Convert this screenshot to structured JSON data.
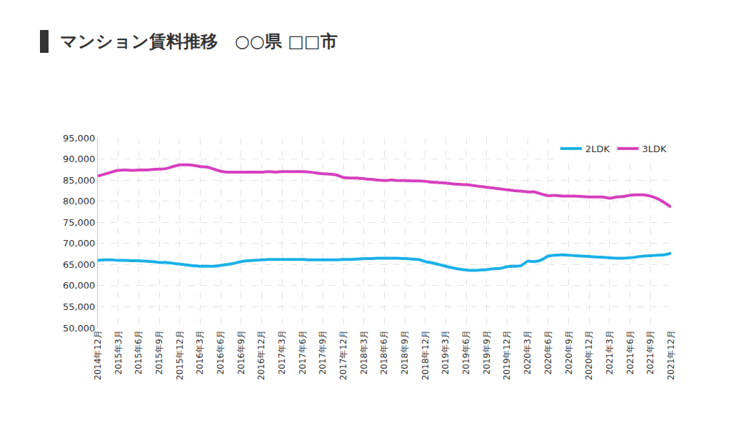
{
  "chart_data": {
    "type": "line",
    "title": "マンション賃料推移　○○県 □□市",
    "categories": [
      "2014年12月",
      null,
      null,
      "2015年3月",
      null,
      null,
      "2015年6月",
      null,
      null,
      "2015年9月",
      null,
      null,
      "2015年12月",
      null,
      null,
      "2016年3月",
      null,
      null,
      "2016年6月",
      null,
      null,
      "2016年9月",
      null,
      null,
      "2016年12月",
      null,
      null,
      "2017年3月",
      null,
      null,
      "2017年6月",
      null,
      null,
      "2017年9月",
      null,
      null,
      "2017年12月",
      null,
      null,
      "2018年3月",
      null,
      null,
      "2018年6月",
      null,
      null,
      "2018年9月",
      null,
      null,
      "2018年12月",
      null,
      null,
      "2019年3月",
      null,
      null,
      "2019年6月",
      null,
      null,
      "2019年9月",
      null,
      null,
      "2019年12月",
      null,
      null,
      "2020年3月",
      null,
      null,
      "2020年6月",
      null,
      null,
      "2020年9月",
      null,
      null,
      "2020年12月",
      null,
      null,
      "2021年3月",
      null,
      null,
      "2021年6月",
      null,
      null,
      "2021年9月",
      null,
      null,
      "2021年12月"
    ],
    "series": [
      {
        "name": "2LDK",
        "color": "#1ab0e8",
        "values": [
          66000,
          66100,
          66100,
          66000,
          66000,
          65900,
          65900,
          65800,
          65700,
          65500,
          65500,
          65300,
          65100,
          64900,
          64700,
          64600,
          64600,
          64600,
          64800,
          65000,
          65300,
          65700,
          65900,
          66000,
          66100,
          66200,
          66200,
          66200,
          66200,
          66200,
          66200,
          66100,
          66100,
          66100,
          66100,
          66100,
          66200,
          66200,
          66300,
          66400,
          66400,
          66500,
          66500,
          66500,
          66500,
          66400,
          66300,
          66200,
          65700,
          65400,
          65000,
          64600,
          64200,
          63900,
          63700,
          63600,
          63700,
          63800,
          64000,
          64100,
          64500,
          64600,
          64700,
          65800,
          65700,
          66100,
          67000,
          67200,
          67300,
          67200,
          67100,
          67000,
          66900,
          66800,
          66700,
          66600,
          66500,
          66500,
          66600,
          66800,
          67000,
          67100,
          67200,
          67300,
          67700
        ]
      },
      {
        "name": "3LDK",
        "color": "#d63fbf",
        "values": [
          86000,
          86400,
          86900,
          87300,
          87400,
          87300,
          87400,
          87400,
          87500,
          87600,
          87700,
          88200,
          88600,
          88600,
          88500,
          88200,
          88100,
          87600,
          87100,
          86900,
          86900,
          86900,
          86900,
          86900,
          86900,
          87000,
          86900,
          87000,
          87000,
          87000,
          87000,
          86900,
          86700,
          86500,
          86400,
          86200,
          85600,
          85500,
          85500,
          85300,
          85200,
          85000,
          84900,
          85000,
          84900,
          84900,
          84800,
          84800,
          84700,
          84500,
          84400,
          84300,
          84100,
          84000,
          83900,
          83700,
          83500,
          83300,
          83100,
          82900,
          82700,
          82500,
          82400,
          82200,
          82200,
          81700,
          81300,
          81400,
          81200,
          81200,
          81200,
          81100,
          81000,
          81000,
          81000,
          80700,
          81000,
          81100,
          81400,
          81500,
          81500,
          81200,
          80600,
          79700,
          78600
        ]
      }
    ],
    "ylim": [
      50000,
      95000
    ],
    "yticks": [
      {
        "value": 50000,
        "label": "50,000"
      },
      {
        "value": 55000,
        "label": "55,000"
      },
      {
        "value": 60000,
        "label": "60,000"
      },
      {
        "value": 65000,
        "label": "65,000"
      },
      {
        "value": 70000,
        "label": "70,000"
      },
      {
        "value": 75000,
        "label": "75,000"
      },
      {
        "value": 80000,
        "label": "80,000"
      },
      {
        "value": 85000,
        "label": "85,000"
      },
      {
        "value": 90000,
        "label": "90,000"
      },
      {
        "value": 95000,
        "label": "95,000"
      }
    ],
    "grid": true,
    "legend": "upper right"
  }
}
